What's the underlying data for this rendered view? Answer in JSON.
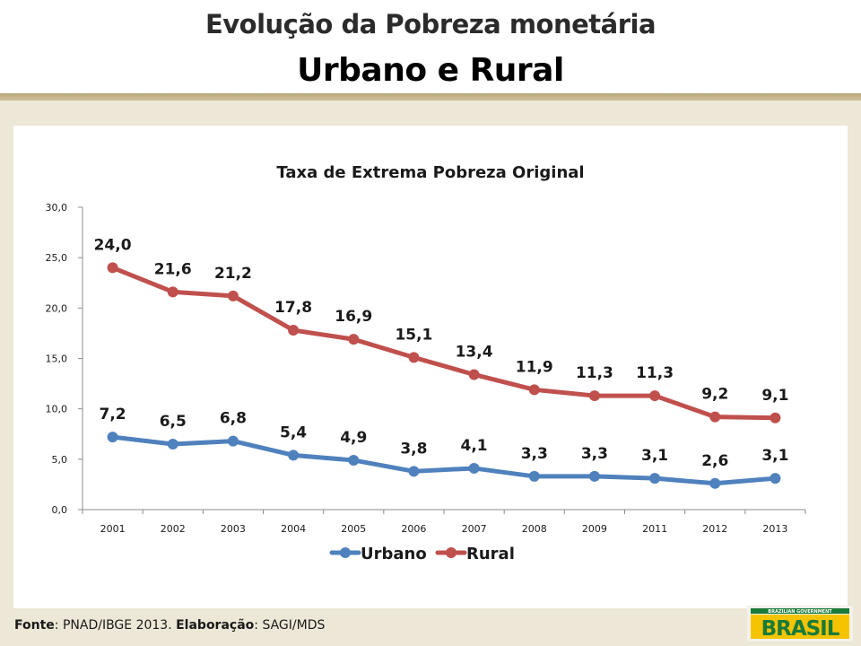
{
  "header": {
    "title": "Evolução da Pobreza monetária",
    "subtitle": "Urbano e Rural"
  },
  "chart_data": {
    "type": "line",
    "title": "Taxa de Extrema Pobreza Original",
    "categories": [
      "2001",
      "2002",
      "2003",
      "2004",
      "2005",
      "2006",
      "2007",
      "2008",
      "2009",
      "2011",
      "2012",
      "2013"
    ],
    "series": [
      {
        "name": "Urbano",
        "color": "#4f81bd",
        "values": [
          7.2,
          6.5,
          6.8,
          5.4,
          4.9,
          3.8,
          4.1,
          3.3,
          3.3,
          3.1,
          2.6,
          3.1
        ],
        "labels": [
          "7,2",
          "6,5",
          "6,8",
          "5,4",
          "4,9",
          "3,8",
          "4,1",
          "3,3",
          "3,3",
          "3,1",
          "2,6",
          "3,1"
        ]
      },
      {
        "name": "Rural",
        "color": "#c0504d",
        "values": [
          24.0,
          21.6,
          21.2,
          17.8,
          16.9,
          15.1,
          13.4,
          11.9,
          11.3,
          11.3,
          9.2,
          9.1
        ],
        "labels": [
          "24,0",
          "21,6",
          "21,2",
          "17,8",
          "16,9",
          "15,1",
          "13,4",
          "11,9",
          "11,3",
          "11,3",
          "9,2",
          "9,1"
        ]
      }
    ],
    "ylim": [
      0,
      30
    ],
    "yticks": [
      "0,0",
      "5,0",
      "10,0",
      "15,0",
      "20,0",
      "25,0",
      "30,0"
    ],
    "legend": "bottom"
  },
  "footer": {
    "source_label": "Fonte",
    "source_text": ": PNAD/IBGE 2013. ",
    "elab_label": "Elaboração",
    "elab_text": ": SAGI/MDS"
  },
  "logo": {
    "small_text": "BRAZILIAN GOVERNMENT",
    "word": "BRASIL"
  }
}
